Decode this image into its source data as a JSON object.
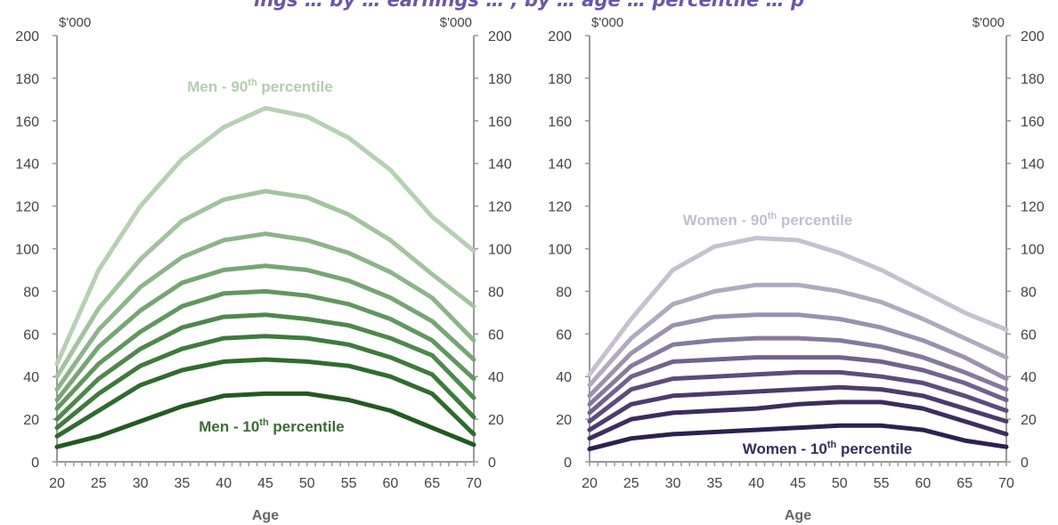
{
  "page": {
    "title": "ings … by … earnings … , by … age … percentile … p"
  },
  "chart_data": [
    {
      "type": "line",
      "xlabel": "Age",
      "unit_left": "$'000",
      "unit_right": "$'000",
      "xlim": [
        20,
        70
      ],
      "ylim": [
        0,
        200
      ],
      "x_ticks": [
        "20",
        "25",
        "30",
        "35",
        "40",
        "45",
        "50",
        "55",
        "60",
        "65",
        "70"
      ],
      "y_ticks": [
        "0",
        "20",
        "40",
        "60",
        "80",
        "100",
        "120",
        "140",
        "160",
        "180",
        "200"
      ],
      "annotations": {
        "top_prefix": "Men - 90",
        "top_sup": "th",
        "top_suffix": " percentile",
        "bottom_prefix": "Men - 10",
        "bottom_sup": "th",
        "bottom_suffix": " percentile"
      },
      "colors": {
        "top_annotation": "#b3cdb0",
        "bottom_annotation": "#3d6b35"
      },
      "x": [
        20,
        25,
        30,
        35,
        40,
        45,
        50,
        55,
        60,
        65,
        70
      ],
      "series": [
        {
          "color": "#b8d0b5",
          "values": [
            46,
            90,
            120,
            142,
            157,
            166,
            162,
            152,
            137,
            115,
            99
          ]
        },
        {
          "color": "#a3c39f",
          "values": [
            40,
            72,
            95,
            113,
            123,
            127,
            124,
            116,
            104,
            88,
            73
          ]
        },
        {
          "color": "#8db48a",
          "values": [
            34,
            62,
            82,
            96,
            104,
            107,
            104,
            98,
            89,
            77,
            57
          ]
        },
        {
          "color": "#77a574",
          "values": [
            29,
            54,
            71,
            84,
            90,
            92,
            90,
            85,
            77,
            66,
            48
          ]
        },
        {
          "color": "#62965f",
          "values": [
            25,
            46,
            61,
            73,
            79,
            80,
            78,
            74,
            67,
            57,
            39
          ]
        },
        {
          "color": "#4f874c",
          "values": [
            20,
            39,
            53,
            63,
            68,
            69,
            67,
            64,
            58,
            50,
            30
          ]
        },
        {
          "color": "#3f7a3c",
          "values": [
            16,
            32,
            45,
            53,
            58,
            59,
            58,
            55,
            49,
            41,
            21
          ]
        },
        {
          "color": "#306b2e",
          "values": [
            12,
            24,
            36,
            43,
            47,
            48,
            47,
            45,
            40,
            32,
            13
          ]
        },
        {
          "color": "#245922",
          "values": [
            7,
            12,
            19,
            26,
            31,
            32,
            32,
            29,
            24,
            16,
            8
          ]
        }
      ]
    },
    {
      "type": "line",
      "xlabel": "Age",
      "unit_left": "$'000",
      "unit_right": "$'000",
      "xlim": [
        20,
        70
      ],
      "ylim": [
        0,
        200
      ],
      "x_ticks": [
        "20",
        "25",
        "30",
        "35",
        "40",
        "45",
        "50",
        "55",
        "60",
        "65",
        "70"
      ],
      "y_ticks": [
        "0",
        "20",
        "40",
        "60",
        "80",
        "100",
        "120",
        "140",
        "160",
        "180",
        "200"
      ],
      "annotations": {
        "top_prefix": "Women - 90",
        "top_sup": "th",
        "top_suffix": " percentile",
        "bottom_prefix": "Women - 10",
        "bottom_sup": "th",
        "bottom_suffix": " percentile"
      },
      "colors": {
        "top_annotation": "#c4bdce",
        "bottom_annotation": "#3a2a55"
      },
      "x": [
        20,
        25,
        30,
        35,
        40,
        45,
        50,
        55,
        60,
        65,
        70
      ],
      "series": [
        {
          "color": "#c6c1ce",
          "values": [
            41,
            67,
            90,
            101,
            105,
            104,
            98,
            90,
            80,
            70,
            62
          ]
        },
        {
          "color": "#b1a9bd",
          "values": [
            36,
            58,
            74,
            80,
            83,
            83,
            80,
            75,
            67,
            58,
            49
          ]
        },
        {
          "color": "#9c91ad",
          "values": [
            31,
            51,
            64,
            68,
            69,
            69,
            67,
            63,
            57,
            49,
            39
          ]
        },
        {
          "color": "#86799c",
          "values": [
            27,
            45,
            55,
            57,
            58,
            58,
            57,
            54,
            49,
            42,
            34
          ]
        },
        {
          "color": "#71628c",
          "values": [
            23,
            40,
            47,
            48,
            49,
            49,
            49,
            47,
            43,
            37,
            29
          ]
        },
        {
          "color": "#5d4c7b",
          "values": [
            19,
            34,
            39,
            40,
            41,
            42,
            42,
            40,
            37,
            31,
            24
          ]
        },
        {
          "color": "#4c3b6c",
          "values": [
            15,
            27,
            31,
            32,
            33,
            34,
            35,
            34,
            31,
            25,
            19
          ]
        },
        {
          "color": "#3d2d5e",
          "values": [
            11,
            20,
            23,
            24,
            25,
            27,
            28,
            28,
            25,
            19,
            13
          ]
        },
        {
          "color": "#2e2050",
          "values": [
            6,
            11,
            13,
            14,
            15,
            16,
            17,
            17,
            15,
            10,
            7
          ]
        }
      ]
    }
  ]
}
